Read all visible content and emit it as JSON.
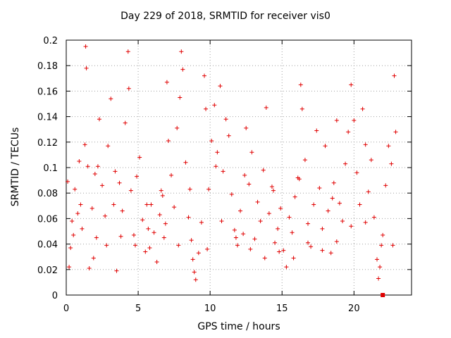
{
  "chart_data": {
    "type": "scatter",
    "title": "Day 229 of 2018, SRMTID for receiver vis0",
    "xlabel": "GPS time / hours",
    "ylabel": "SRMTID / TECUs",
    "xlim": [
      0,
      24
    ],
    "ylim": [
      0,
      0.2
    ],
    "xticks": [
      0,
      5,
      10,
      15,
      20
    ],
    "yticks": [
      0,
      0.02,
      0.04,
      0.06,
      0.08,
      0.1,
      0.12,
      0.14,
      0.16,
      0.18,
      0.2
    ],
    "grid": true,
    "marker": "+",
    "color": "#e00000",
    "series": [
      {
        "name": "SRMTID",
        "points_count": 160,
        "points": [
          [
            0.1,
            0.089
          ],
          [
            0.2,
            0.022
          ],
          [
            0.3,
            0.037
          ],
          [
            0.4,
            0.058
          ],
          [
            0.6,
            0.083
          ],
          [
            0.8,
            0.064
          ],
          [
            1.0,
            0.071
          ],
          [
            1.1,
            0.052
          ],
          [
            1.3,
            0.118
          ],
          [
            1.35,
            0.195
          ],
          [
            1.4,
            0.178
          ],
          [
            1.5,
            0.101
          ],
          [
            1.6,
            0.021
          ],
          [
            1.8,
            0.068
          ],
          [
            2.0,
            0.095
          ],
          [
            2.1,
            0.045
          ],
          [
            2.3,
            0.138
          ],
          [
            2.5,
            0.086
          ],
          [
            2.7,
            0.062
          ],
          [
            2.9,
            0.117
          ],
          [
            3.1,
            0.154
          ],
          [
            3.3,
            0.071
          ],
          [
            3.5,
            0.019
          ],
          [
            3.7,
            0.088
          ],
          [
            3.9,
            0.066
          ],
          [
            4.1,
            0.135
          ],
          [
            4.3,
            0.191
          ],
          [
            4.35,
            0.162
          ],
          [
            4.5,
            0.082
          ],
          [
            4.7,
            0.047
          ],
          [
            4.9,
            0.093
          ],
          [
            5.1,
            0.108
          ],
          [
            5.3,
            0.059
          ],
          [
            5.5,
            0.034
          ],
          [
            5.7,
            0.052
          ],
          [
            5.9,
            0.071
          ],
          [
            6.1,
            0.049
          ],
          [
            6.3,
            0.026
          ],
          [
            6.5,
            0.063
          ],
          [
            6.7,
            0.078
          ],
          [
            6.9,
            0.056
          ],
          [
            7.0,
            0.167
          ],
          [
            7.1,
            0.121
          ],
          [
            7.3,
            0.094
          ],
          [
            7.5,
            0.069
          ],
          [
            7.7,
            0.131
          ],
          [
            7.9,
            0.155
          ],
          [
            8.0,
            0.191
          ],
          [
            8.1,
            0.177
          ],
          [
            8.3,
            0.104
          ],
          [
            8.5,
            0.061
          ],
          [
            8.7,
            0.043
          ],
          [
            8.9,
            0.018
          ],
          [
            9.0,
            0.012
          ],
          [
            9.2,
            0.033
          ],
          [
            9.4,
            0.057
          ],
          [
            9.6,
            0.172
          ],
          [
            9.7,
            0.146
          ],
          [
            9.9,
            0.083
          ],
          [
            10.1,
            0.121
          ],
          [
            10.3,
            0.149
          ],
          [
            10.5,
            0.112
          ],
          [
            10.7,
            0.164
          ],
          [
            10.9,
            0.097
          ],
          [
            11.1,
            0.138
          ],
          [
            11.3,
            0.125
          ],
          [
            11.5,
            0.079
          ],
          [
            11.7,
            0.051
          ],
          [
            11.9,
            0.039
          ],
          [
            12.1,
            0.066
          ],
          [
            12.3,
            0.048
          ],
          [
            12.5,
            0.131
          ],
          [
            12.7,
            0.087
          ],
          [
            12.9,
            0.112
          ],
          [
            13.1,
            0.044
          ],
          [
            13.3,
            0.073
          ],
          [
            13.5,
            0.058
          ],
          [
            13.7,
            0.098
          ],
          [
            13.9,
            0.147
          ],
          [
            14.1,
            0.064
          ],
          [
            14.3,
            0.085
          ],
          [
            14.5,
            0.041
          ],
          [
            14.7,
            0.052
          ],
          [
            14.9,
            0.068
          ],
          [
            15.1,
            0.035
          ],
          [
            15.3,
            0.022
          ],
          [
            15.5,
            0.061
          ],
          [
            15.7,
            0.049
          ],
          [
            15.9,
            0.077
          ],
          [
            16.1,
            0.092
          ],
          [
            16.3,
            0.165
          ],
          [
            16.4,
            0.146
          ],
          [
            16.6,
            0.106
          ],
          [
            16.8,
            0.056
          ],
          [
            17.0,
            0.038
          ],
          [
            17.2,
            0.071
          ],
          [
            17.4,
            0.129
          ],
          [
            17.6,
            0.084
          ],
          [
            17.8,
            0.052
          ],
          [
            18.0,
            0.117
          ],
          [
            18.2,
            0.066
          ],
          [
            18.4,
            0.033
          ],
          [
            18.6,
            0.088
          ],
          [
            18.8,
            0.137
          ],
          [
            19.0,
            0.072
          ],
          [
            19.2,
            0.058
          ],
          [
            19.4,
            0.103
          ],
          [
            19.6,
            0.128
          ],
          [
            19.8,
            0.165
          ],
          [
            20.0,
            0.137
          ],
          [
            20.2,
            0.096
          ],
          [
            20.4,
            0.071
          ],
          [
            20.6,
            0.146
          ],
          [
            20.8,
            0.118
          ],
          [
            21.0,
            0.081
          ],
          [
            21.2,
            0.106
          ],
          [
            21.4,
            0.061
          ],
          [
            21.6,
            0.028
          ],
          [
            21.7,
            0.013
          ],
          [
            21.8,
            0.022
          ],
          [
            22.0,
            0.047
          ],
          [
            22.2,
            0.086
          ],
          [
            22.4,
            0.117
          ],
          [
            22.6,
            0.103
          ],
          [
            22.8,
            0.172
          ],
          [
            22.9,
            0.128
          ],
          [
            0.5,
            0.047
          ],
          [
            1.9,
            0.029
          ],
          [
            2.8,
            0.039
          ],
          [
            3.8,
            0.046
          ],
          [
            4.8,
            0.039
          ],
          [
            5.8,
            0.037
          ],
          [
            6.8,
            0.045
          ],
          [
            7.8,
            0.039
          ],
          [
            8.8,
            0.028
          ],
          [
            9.8,
            0.036
          ],
          [
            10.8,
            0.058
          ],
          [
            11.8,
            0.045
          ],
          [
            12.8,
            0.036
          ],
          [
            13.8,
            0.029
          ],
          [
            14.8,
            0.034
          ],
          [
            15.8,
            0.029
          ],
          [
            16.8,
            0.041
          ],
          [
            17.8,
            0.035
          ],
          [
            18.8,
            0.042
          ],
          [
            19.8,
            0.054
          ],
          [
            20.8,
            0.057
          ],
          [
            21.9,
            0.039
          ],
          [
            22.7,
            0.039
          ],
          [
            0.9,
            0.105
          ],
          [
            2.2,
            0.101
          ],
          [
            3.4,
            0.097
          ],
          [
            5.6,
            0.071
          ],
          [
            6.6,
            0.082
          ],
          [
            8.6,
            0.083
          ],
          [
            10.4,
            0.101
          ],
          [
            12.4,
            0.094
          ],
          [
            14.4,
            0.082
          ],
          [
            16.2,
            0.091
          ],
          [
            18.5,
            0.076
          ]
        ]
      }
    ]
  }
}
